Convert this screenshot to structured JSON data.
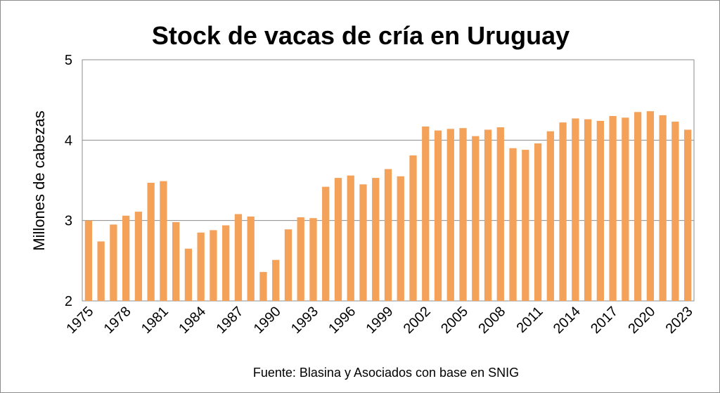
{
  "chart_data": {
    "type": "bar",
    "title": "Stock de vacas de cría en Uruguay",
    "ylabel": "Millones de cabezas",
    "xlabel": "",
    "source": "Fuente: Blasina y Asociados con base en SNIG",
    "ylim": [
      2,
      5
    ],
    "yticks": [
      2,
      3,
      4,
      5
    ],
    "grid": true,
    "bar_color": "#F4A25A",
    "xtick_labels": [
      "1975",
      "1978",
      "1981",
      "1984",
      "1987",
      "1990",
      "1993",
      "1996",
      "1999",
      "2002",
      "2005",
      "2008",
      "2011",
      "2014",
      "2017",
      "2020",
      "2023"
    ],
    "categories": [
      "1975",
      "1976",
      "1977",
      "1978",
      "1979",
      "1980",
      "1981",
      "1982",
      "1983",
      "1984",
      "1985",
      "1986",
      "1987",
      "1988",
      "1989",
      "1990",
      "1991",
      "1992",
      "1993",
      "1994",
      "1995",
      "1996",
      "1997",
      "1998",
      "1999",
      "2000",
      "2001",
      "2002",
      "2003",
      "2004",
      "2005",
      "2006",
      "2007",
      "2008",
      "2009",
      "2010",
      "2011",
      "2012",
      "2013",
      "2014",
      "2015",
      "2016",
      "2017",
      "2018",
      "2019",
      "2020",
      "2021",
      "2022",
      "2023"
    ],
    "values": [
      3.0,
      2.74,
      2.95,
      3.06,
      3.11,
      3.47,
      3.49,
      2.98,
      2.65,
      2.85,
      2.88,
      2.94,
      3.08,
      3.05,
      2.36,
      2.51,
      2.89,
      3.04,
      3.03,
      3.42,
      3.53,
      3.56,
      3.45,
      3.53,
      3.64,
      3.55,
      3.81,
      4.17,
      4.12,
      4.14,
      4.15,
      4.05,
      4.13,
      4.16,
      3.9,
      3.88,
      3.96,
      4.11,
      4.22,
      4.27,
      4.26,
      4.24,
      4.3,
      4.28,
      4.35,
      4.36,
      4.31,
      4.23,
      4.13
    ]
  }
}
